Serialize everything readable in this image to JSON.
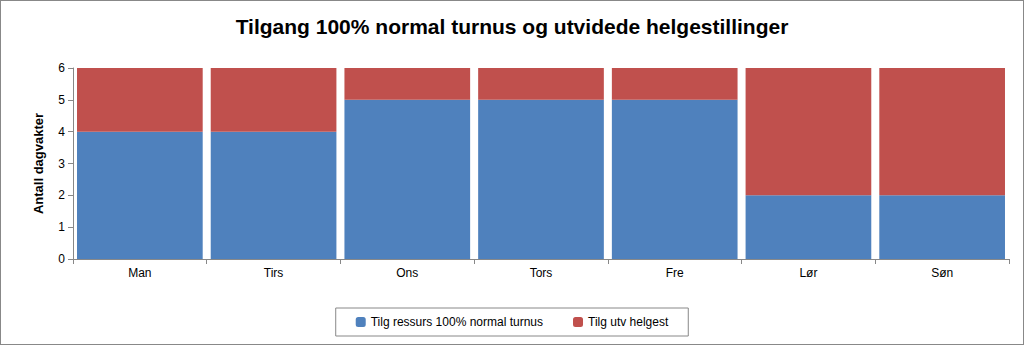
{
  "chart_data": {
    "type": "bar",
    "title": "Tilgang 100% normal turnus og utvidede helgestillinger",
    "y_label": "Antall dagvakter",
    "categories": [
      "Man",
      "Tirs",
      "Ons",
      "Tors",
      "Fre",
      "Lør",
      "Søn"
    ],
    "series": [
      {
        "name": "Tilg ressurs 100% normal turnus",
        "color": "#4f81bd",
        "values": [
          4,
          4,
          5,
          5,
          5,
          2,
          2
        ]
      },
      {
        "name": "Tilg utv helgest",
        "color": "#c0504d",
        "values": [
          2,
          2,
          1,
          1,
          1,
          4,
          4
        ]
      }
    ],
    "stacked": true,
    "ylim": [
      0,
      6
    ],
    "yticks": [
      0,
      1,
      2,
      3,
      4,
      5,
      6
    ],
    "grid": false,
    "legend": "bottom"
  }
}
